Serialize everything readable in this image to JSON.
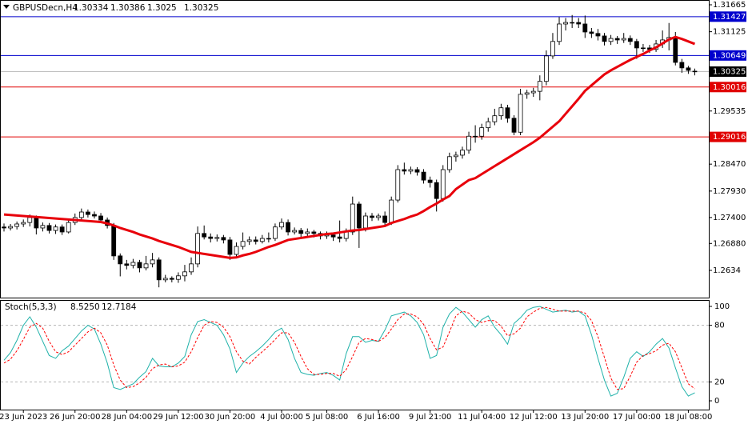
{
  "chart_data": [
    {
      "type": "candlestick",
      "title": "GBPUSDecn,H4",
      "categories": [
        null,
        null,
        null,
        "23 Jun 2023",
        null,
        null,
        null,
        null,
        null,
        null,
        null,
        "26 Jun 20:00",
        null,
        null,
        null,
        null,
        null,
        null,
        null,
        "28 Jun 04:00",
        null,
        null,
        null,
        null,
        null,
        null,
        null,
        "29 Jun 12:00",
        null,
        null,
        null,
        null,
        null,
        null,
        null,
        "30 Jun 20:00",
        null,
        null,
        null,
        null,
        null,
        null,
        null,
        "4 Jul 00:00",
        null,
        null,
        null,
        null,
        null,
        null,
        "5 Jul 08:00",
        null,
        null,
        null,
        null,
        null,
        null,
        null,
        "6 Jul 16:00",
        null,
        null,
        null,
        null,
        null,
        null,
        null,
        "9 Jul 21:00",
        null,
        null,
        null,
        null,
        null,
        null,
        null,
        "11 Jul 04:00",
        null,
        null,
        null,
        null,
        null,
        null,
        null,
        "12 Jul 12:00",
        null,
        null,
        null,
        null,
        null,
        null,
        null,
        "13 Jul 20:00",
        null,
        null,
        null,
        null,
        null,
        null,
        null,
        "17 Jul 00:00",
        null,
        null,
        null,
        null,
        null,
        null,
        null,
        "18 Jul 08:00",
        null
      ],
      "candles": [
        [
          1.2721,
          1.2728,
          1.2712,
          1.2719
        ],
        [
          1.2719,
          1.2727,
          1.2714,
          1.2722
        ],
        [
          1.2722,
          1.2732,
          1.2716,
          1.2727
        ],
        [
          1.2727,
          1.2736,
          1.2721,
          1.273
        ],
        [
          1.273,
          1.2746,
          1.2722,
          1.274
        ],
        [
          1.274,
          1.2744,
          1.2706,
          1.2719
        ],
        [
          1.2719,
          1.273,
          1.2712,
          1.2724
        ],
        [
          1.2724,
          1.2729,
          1.2708,
          1.2714
        ],
        [
          1.2714,
          1.2726,
          1.2707,
          1.2721
        ],
        [
          1.2721,
          1.2726,
          1.2705,
          1.2711
        ],
        [
          1.2711,
          1.2735,
          1.2708,
          1.273
        ],
        [
          1.273,
          1.2748,
          1.2725,
          1.274
        ],
        [
          1.274,
          1.2758,
          1.2734,
          1.2751
        ],
        [
          1.2751,
          1.2756,
          1.274,
          1.2746
        ],
        [
          1.2746,
          1.2752,
          1.2738,
          1.2743
        ],
        [
          1.2743,
          1.2749,
          1.2729,
          1.2735
        ],
        [
          1.2735,
          1.274,
          1.2718,
          1.2724
        ],
        [
          1.2724,
          1.2729,
          1.2655,
          1.2663
        ],
        [
          1.2663,
          1.2668,
          1.2622,
          1.2647
        ],
        [
          1.2647,
          1.2655,
          1.2636,
          1.2644
        ],
        [
          1.2644,
          1.2657,
          1.2638,
          1.265
        ],
        [
          1.265,
          1.2655,
          1.263,
          1.2639
        ],
        [
          1.2639,
          1.2663,
          1.2634,
          1.2647
        ],
        [
          1.2647,
          1.2669,
          1.264,
          1.2655
        ],
        [
          1.2655,
          1.266,
          1.26,
          1.2615
        ],
        [
          1.2615,
          1.2625,
          1.261,
          1.2618
        ],
        [
          1.2618,
          1.2622,
          1.261,
          1.2616
        ],
        [
          1.2616,
          1.263,
          1.2609,
          1.2623
        ],
        [
          1.2623,
          1.2645,
          1.2612,
          1.2631
        ],
        [
          1.2631,
          1.266,
          1.2625,
          1.2647
        ],
        [
          1.2647,
          1.2722,
          1.264,
          1.2708
        ],
        [
          1.2708,
          1.2724,
          1.2696,
          1.2701
        ],
        [
          1.2701,
          1.2708,
          1.269,
          1.2698
        ],
        [
          1.2698,
          1.2706,
          1.2692,
          1.27
        ],
        [
          1.27,
          1.2705,
          1.2688,
          1.2695
        ],
        [
          1.2695,
          1.2701,
          1.2655,
          1.2666
        ],
        [
          1.2666,
          1.269,
          1.266,
          1.2682
        ],
        [
          1.2682,
          1.271,
          1.2676,
          1.2692
        ],
        [
          1.2692,
          1.2702,
          1.2685,
          1.2695
        ],
        [
          1.2695,
          1.2702,
          1.2686,
          1.2692
        ],
        [
          1.2692,
          1.2705,
          1.2688,
          1.2698
        ],
        [
          1.2698,
          1.271,
          1.269,
          1.2698
        ],
        [
          1.2698,
          1.2728,
          1.2693,
          1.2721
        ],
        [
          1.2721,
          1.2738,
          1.2716,
          1.273
        ],
        [
          1.273,
          1.2736,
          1.2704,
          1.2711
        ],
        [
          1.2711,
          1.272,
          1.2706,
          1.2714
        ],
        [
          1.2714,
          1.2719,
          1.27,
          1.2708
        ],
        [
          1.2708,
          1.2718,
          1.2702,
          1.2711
        ],
        [
          1.2711,
          1.2715,
          1.27,
          1.2708
        ],
        [
          1.2708,
          1.2712,
          1.2696,
          1.2703
        ],
        [
          1.2703,
          1.2712,
          1.2697,
          1.2705
        ],
        [
          1.2705,
          1.271,
          1.2693,
          1.2701
        ],
        [
          1.2701,
          1.2734,
          1.269,
          1.2698
        ],
        [
          1.2698,
          1.2718,
          1.2692,
          1.2711
        ],
        [
          1.2711,
          1.2782,
          1.2705,
          1.2767
        ],
        [
          1.2767,
          1.2772,
          1.2679,
          1.2719
        ],
        [
          1.2719,
          1.275,
          1.2712,
          1.2743
        ],
        [
          1.2743,
          1.2749,
          1.2733,
          1.274
        ],
        [
          1.274,
          1.2748,
          1.2734,
          1.2743
        ],
        [
          1.2743,
          1.2752,
          1.2724,
          1.273
        ],
        [
          1.273,
          1.2782,
          1.2725,
          1.2775
        ],
        [
          1.2775,
          1.2845,
          1.277,
          1.2836
        ],
        [
          1.2836,
          1.285,
          1.2826,
          1.2833
        ],
        [
          1.2833,
          1.2842,
          1.2827,
          1.2836
        ],
        [
          1.2836,
          1.2841,
          1.2824,
          1.2831
        ],
        [
          1.2831,
          1.2837,
          1.2808,
          1.2815
        ],
        [
          1.2815,
          1.2822,
          1.28,
          1.281
        ],
        [
          1.281,
          1.2816,
          1.2752,
          1.2778
        ],
        [
          1.2778,
          1.2845,
          1.2772,
          1.2836
        ],
        [
          1.2836,
          1.287,
          1.283,
          1.2862
        ],
        [
          1.2862,
          1.2872,
          1.2852,
          1.2865
        ],
        [
          1.2865,
          1.2882,
          1.2858,
          1.2875
        ],
        [
          1.2875,
          1.2912,
          1.2868,
          1.2903
        ],
        [
          1.2903,
          1.2925,
          1.289,
          1.2903
        ],
        [
          1.2903,
          1.2928,
          1.2896,
          1.292
        ],
        [
          1.292,
          1.294,
          1.2912,
          1.2932
        ],
        [
          1.2932,
          1.2958,
          1.2925,
          1.2944
        ],
        [
          1.2944,
          1.2968,
          1.2936,
          1.296
        ],
        [
          1.296,
          1.2966,
          1.293,
          1.2939
        ],
        [
          1.2939,
          1.2945,
          1.2905,
          1.2911
        ],
        [
          1.2911,
          1.2998,
          1.2905,
          1.2987
        ],
        [
          1.2987,
          1.2996,
          1.2978,
          1.299
        ],
        [
          1.299,
          1.3,
          1.2982,
          1.2993
        ],
        [
          1.2993,
          1.3025,
          1.2975,
          1.3013
        ],
        [
          1.3013,
          1.3075,
          1.3005,
          1.3064
        ],
        [
          1.3064,
          1.311,
          1.3058,
          1.3093
        ],
        [
          1.3093,
          1.3142,
          1.3086,
          1.3128
        ],
        [
          1.3128,
          1.314,
          1.3115,
          1.3131
        ],
        [
          1.3131,
          1.3146,
          1.312,
          1.3131
        ],
        [
          1.3131,
          1.314,
          1.312,
          1.3128
        ],
        [
          1.3128,
          1.3145,
          1.31,
          1.3112
        ],
        [
          1.3112,
          1.312,
          1.31,
          1.3109
        ],
        [
          1.3109,
          1.3118,
          1.3095,
          1.3104
        ],
        [
          1.3104,
          1.311,
          1.3085,
          1.3093
        ],
        [
          1.3093,
          1.3106,
          1.3086,
          1.3099
        ],
        [
          1.3099,
          1.3104,
          1.3088,
          1.3096
        ],
        [
          1.3096,
          1.311,
          1.309,
          1.3099
        ],
        [
          1.3099,
          1.3105,
          1.3086,
          1.3093
        ],
        [
          1.3093,
          1.3098,
          1.3058,
          1.308
        ],
        [
          1.308,
          1.3088,
          1.3072,
          1.308
        ],
        [
          1.308,
          1.3086,
          1.307,
          1.3077
        ],
        [
          1.3077,
          1.3096,
          1.3072,
          1.3088
        ],
        [
          1.3088,
          1.3115,
          1.308,
          1.3096
        ],
        [
          1.3096,
          1.313,
          1.3075,
          1.3101
        ],
        [
          1.3101,
          1.3112,
          1.3045,
          1.3051
        ],
        [
          1.3051,
          1.3058,
          1.303,
          1.304
        ],
        [
          1.304,
          1.3044,
          1.3028,
          1.3035
        ],
        [
          1.30334,
          1.30386,
          1.3025,
          1.30325
        ]
      ],
      "series": [
        {
          "color": "#e8000b",
          "values": [
            1.2746,
            1.2745,
            1.2744,
            1.2743,
            1.2742,
            1.2741,
            1.274,
            1.2739,
            1.2738,
            1.2737,
            1.2736,
            1.2735,
            1.2734,
            1.2733,
            1.2732,
            1.2731,
            1.2728,
            1.2724,
            1.2719,
            1.2715,
            1.2711,
            1.2706,
            1.2702,
            1.2698,
            1.2693,
            1.2689,
            1.2685,
            1.2681,
            1.2676,
            1.2671,
            1.2669,
            1.2667,
            1.2665,
            1.2663,
            1.2661,
            1.2659,
            1.266,
            1.2664,
            1.2667,
            1.2671,
            1.2676,
            1.2681,
            1.2685,
            1.269,
            1.2695,
            1.2697,
            1.2699,
            1.2701,
            1.2703,
            1.2705,
            1.2707,
            1.2708,
            1.271,
            1.2712,
            1.2714,
            1.2715,
            1.2717,
            1.2719,
            1.2721,
            1.2723,
            1.2729,
            1.2733,
            1.2737,
            1.2742,
            1.2746,
            1.2753,
            1.2761,
            1.2768,
            1.2776,
            1.2783,
            1.2797,
            1.2806,
            1.2815,
            1.2819,
            1.2827,
            1.2835,
            1.2843,
            1.2851,
            1.2859,
            1.2867,
            1.2875,
            1.2883,
            1.2891,
            1.29,
            1.2911,
            1.2922,
            1.2933,
            1.2948,
            1.2963,
            1.2978,
            1.2994,
            1.3005,
            1.3016,
            1.3027,
            1.3035,
            1.3042,
            1.3049,
            1.3056,
            1.3062,
            1.3068,
            1.3075,
            1.3081,
            1.3089,
            1.3097,
            1.3102,
            1.3098,
            1.3093,
            1.3088
          ]
        }
      ],
      "levels": [
        {
          "value": 1.31427,
          "color": "#0000cd",
          "tag_color": "#0000cd"
        },
        {
          "value": 1.30649,
          "color": "#0000cd",
          "tag_color": "#0000cd"
        },
        {
          "value": 1.30325,
          "color": "#c0c0c0",
          "tag_color": "#000000"
        },
        {
          "value": 1.30016,
          "color": "#e00000",
          "tag_color": "#e00000"
        },
        {
          "value": 1.29016,
          "color": "#e00000",
          "tag_color": "#e00000"
        }
      ],
      "ylim": [
        1.25794,
        1.31761
      ],
      "yticks": [
        1.31665,
        1.31125,
        1.29535,
        {
          "value": 1.2847,
          "label": "1.28470"
        },
        {
          "value": 1.2793,
          "label": "1.27930"
        },
        {
          "value": 1.274,
          "label": "1.27400"
        },
        {
          "value": 1.2688,
          "label": "1.26880"
        },
        1.2634
      ]
    },
    {
      "type": "line",
      "title": "Stoch(5,3,3)",
      "readout": [
        {
          "value": 8.525,
          "label": "8.5250"
        },
        12.7184
      ],
      "ylim": [
        -9.3,
        106.8
      ],
      "yticks": [
        0,
        20,
        80,
        100
      ],
      "levels": [
        20,
        80
      ],
      "series": [
        {
          "color": "#20b2aa",
          "dashed": false,
          "values": [
            43,
            51,
            64,
            80,
            89,
            78,
            63,
            48,
            45,
            53,
            58,
            66,
            74,
            80,
            76,
            60,
            40,
            14,
            12,
            15,
            18,
            25,
            31,
            45,
            37,
            36,
            36,
            40,
            47,
            70,
            84,
            86,
            83,
            80,
            70,
            55,
            30,
            40,
            47,
            52,
            58,
            65,
            73,
            77,
            65,
            45,
            30,
            28,
            27,
            29,
            30,
            27,
            22,
            50,
            68,
            68,
            62,
            64,
            63,
            75,
            90,
            92,
            94,
            90,
            83,
            70,
            45,
            48,
            78,
            92,
            99,
            94,
            86,
            78,
            86,
            90,
            78,
            70,
            60,
            82,
            88,
            96,
            99,
            100,
            97,
            94,
            95,
            96,
            94,
            95,
            90,
            70,
            45,
            22,
            5,
            8,
            25,
            45,
            52,
            47,
            52,
            60,
            66,
            56,
            35,
            15,
            5,
            8.525
          ]
        },
        {
          "color": "#ff0000",
          "dashed": true,
          "values": [
            40,
            44,
            53,
            65,
            78,
            82,
            77,
            63,
            52,
            49,
            52,
            59,
            66,
            73,
            77,
            72,
            59,
            38,
            22,
            14,
            15,
            19,
            25,
            34,
            38,
            39,
            36,
            37,
            41,
            52,
            67,
            80,
            84,
            83,
            78,
            68,
            52,
            42,
            39,
            46,
            52,
            58,
            65,
            72,
            72,
            62,
            47,
            34,
            28,
            28,
            29,
            29,
            26,
            33,
            47,
            62,
            66,
            65,
            63,
            67,
            76,
            86,
            92,
            92,
            89,
            81,
            66,
            54,
            57,
            73,
            90,
            95,
            93,
            86,
            83,
            85,
            85,
            79,
            69,
            71,
            77,
            89,
            94,
            98,
            99,
            97,
            95,
            95,
            95,
            95,
            93,
            85,
            68,
            46,
            24,
            12,
            13,
            26,
            41,
            48,
            50,
            53,
            59,
            61,
            52,
            35,
            18,
            12.7184
          ]
        }
      ]
    }
  ]
}
